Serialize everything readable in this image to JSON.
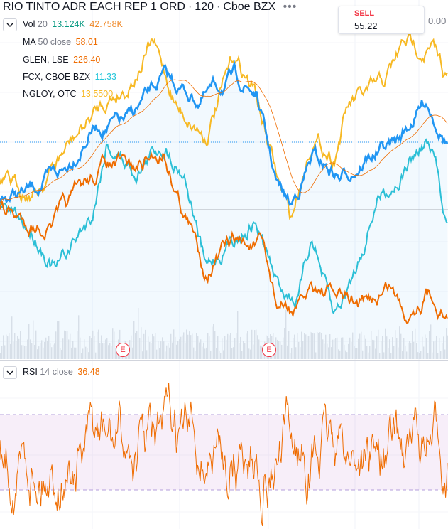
{
  "header": {
    "symbol": "RIO TINTO ADR EACH REP 1 ORD",
    "interval": "120",
    "exchange": "Cboe BZX"
  },
  "legend": {
    "volume": {
      "name": "Vol",
      "params": "20",
      "value1": "13.124K",
      "value2": "42.758K"
    },
    "ma": {
      "name": "MA",
      "params": "50 close",
      "value": "58.01"
    },
    "compare": [
      {
        "name": "GLEN, LSE",
        "value": "226.40"
      },
      {
        "name": "FCX, CBOE BZX",
        "value": "11.33"
      },
      {
        "name": "NGLOY, OTC",
        "value": "13.5500"
      }
    ],
    "rsi": {
      "name": "RSI",
      "params": "14 close",
      "value": "36.48"
    }
  },
  "trade": {
    "sell_label": "SELL",
    "sell_price": "55.22",
    "spread": "0.00"
  },
  "events": [
    "E",
    "E"
  ]
}
